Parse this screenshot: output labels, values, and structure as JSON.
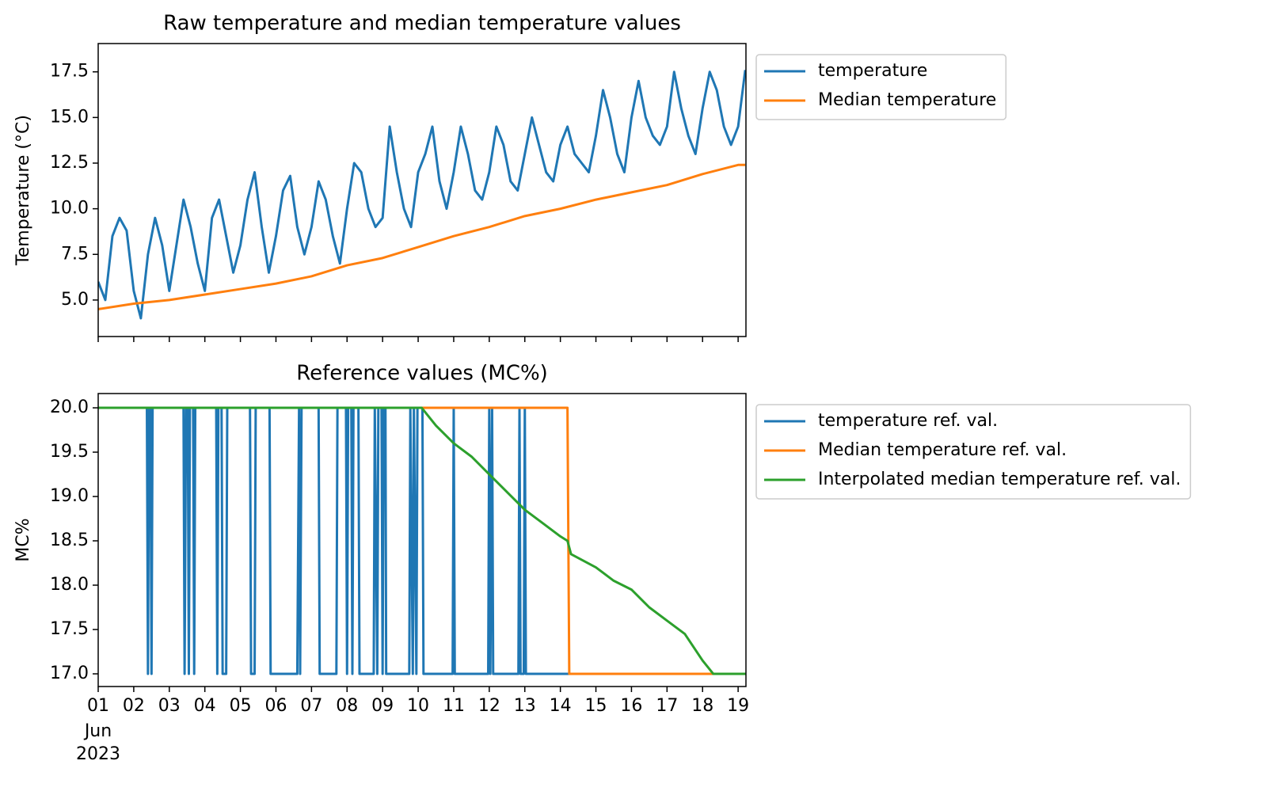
{
  "chart_data": [
    {
      "type": "line",
      "title": "Raw temperature and median temperature values",
      "ylabel": "Temperature (°C)",
      "xlim": [
        1,
        19.22
      ],
      "ylim": [
        3.0,
        19.05
      ],
      "xticks": [
        1,
        2,
        3,
        4,
        5,
        6,
        7,
        8,
        9,
        10,
        11,
        12,
        13,
        14,
        15,
        16,
        17,
        18,
        19
      ],
      "yticks": [
        {
          "value": 5,
          "label": "5.0"
        },
        7.5,
        {
          "value": 10,
          "label": "10.0"
        },
        12.5,
        {
          "value": 15,
          "label": "15.0"
        },
        17.5
      ],
      "grid": false,
      "legend": "outside upper right",
      "series": [
        {
          "name": "temperature",
          "color": "#1f77b4",
          "x": [
            1.0,
            1.2,
            1.4,
            1.6,
            1.8,
            2.0,
            2.2,
            2.4,
            2.6,
            2.8,
            3.0,
            3.2,
            3.4,
            3.6,
            3.8,
            4.0,
            4.2,
            4.4,
            4.6,
            4.8,
            5.0,
            5.2,
            5.4,
            5.6,
            5.8,
            6.0,
            6.2,
            6.4,
            6.6,
            6.8,
            7.0,
            7.2,
            7.4,
            7.6,
            7.8,
            8.0,
            8.2,
            8.4,
            8.6,
            8.8,
            9.0,
            9.2,
            9.4,
            9.6,
            9.8,
            10.0,
            10.2,
            10.4,
            10.6,
            10.8,
            11.0,
            11.2,
            11.4,
            11.6,
            11.8,
            12.0,
            12.2,
            12.4,
            12.6,
            12.8,
            13.0,
            13.2,
            13.4,
            13.6,
            13.8,
            14.0,
            14.2,
            14.4,
            14.6,
            14.8,
            15.0,
            15.2,
            15.4,
            15.6,
            15.8,
            16.0,
            16.2,
            16.4,
            16.6,
            16.8,
            17.0,
            17.2,
            17.4,
            17.6,
            17.8,
            18.0,
            18.2,
            18.4,
            18.6,
            18.8,
            19.0,
            19.2
          ],
          "values": [
            6.0,
            5.0,
            8.5,
            9.5,
            8.8,
            5.5,
            4.0,
            7.5,
            9.5,
            8.0,
            5.5,
            8.0,
            10.5,
            9.0,
            7.0,
            5.5,
            9.5,
            10.5,
            8.5,
            6.5,
            8.0,
            10.5,
            12.0,
            9.0,
            6.5,
            8.5,
            11.0,
            11.8,
            9.0,
            7.5,
            9.0,
            11.5,
            10.5,
            8.5,
            7.0,
            10.0,
            12.5,
            12.0,
            10.0,
            9.0,
            9.5,
            14.5,
            12.0,
            10.0,
            9.0,
            12.0,
            13.0,
            14.5,
            11.5,
            10.0,
            12.0,
            14.5,
            13.0,
            11.0,
            10.5,
            12.0,
            14.5,
            13.5,
            11.5,
            11.0,
            13.0,
            15.0,
            13.5,
            12.0,
            11.5,
            13.5,
            14.5,
            13.0,
            12.5,
            12.0,
            14.0,
            16.5,
            15.0,
            13.0,
            12.0,
            15.0,
            17.0,
            15.0,
            14.0,
            13.5,
            14.5,
            17.5,
            15.5,
            14.0,
            13.0,
            15.5,
            17.5,
            16.5,
            14.5,
            13.5,
            14.5,
            17.6
          ]
        },
        {
          "name": "Median temperature",
          "color": "#ff7f0e",
          "x": [
            1,
            2,
            3,
            4,
            5,
            6,
            7,
            8,
            9,
            10,
            11,
            12,
            13,
            14,
            15,
            16,
            17,
            18,
            19,
            19.2
          ],
          "values": [
            4.5,
            4.8,
            5.0,
            5.3,
            5.6,
            5.9,
            6.3,
            6.9,
            7.3,
            7.9,
            8.5,
            9.0,
            9.6,
            10.0,
            10.5,
            10.9,
            11.3,
            11.9,
            12.4,
            12.4
          ]
        }
      ]
    },
    {
      "type": "line",
      "title": "Reference values (MC%)",
      "ylabel": "MC%",
      "xlim": [
        1,
        19.22
      ],
      "ylim": [
        16.857,
        20.161
      ],
      "xticks": [
        {
          "value": 1,
          "label": "01"
        },
        {
          "value": 2,
          "label": "02"
        },
        {
          "value": 3,
          "label": "03"
        },
        {
          "value": 4,
          "label": "04"
        },
        {
          "value": 5,
          "label": "05"
        },
        {
          "value": 6,
          "label": "06"
        },
        {
          "value": 7,
          "label": "07"
        },
        {
          "value": 8,
          "label": "08"
        },
        {
          "value": 9,
          "label": "09"
        },
        10,
        11,
        12,
        13,
        14,
        15,
        16,
        17,
        18,
        19
      ],
      "x_sublabels": [
        "Jun",
        "2023"
      ],
      "yticks": [
        {
          "value": 17,
          "label": "17.0"
        },
        17.5,
        {
          "value": 18,
          "label": "18.0"
        },
        18.5,
        {
          "value": 19,
          "label": "19.0"
        },
        19.5,
        {
          "value": 20,
          "label": "20.0"
        }
      ],
      "grid": false,
      "legend": "outside upper right",
      "series": [
        {
          "name": "temperature ref. val.",
          "color": "#1f77b4",
          "x": [
            1,
            2.37,
            2.4,
            2.43,
            2.47,
            2.5,
            2.53,
            3.4,
            3.43,
            3.47,
            3.52,
            3.55,
            3.58,
            3.67,
            3.7,
            3.73,
            4.32,
            4.35,
            4.38,
            4.47,
            4.5,
            4.6,
            4.63,
            5.27,
            5.3,
            5.4,
            5.43,
            5.82,
            5.85,
            6.6,
            6.65,
            6.68,
            6.72,
            7.2,
            7.23,
            7.7,
            7.73,
            7.97,
            8.0,
            8.03,
            8.12,
            8.15,
            8.18,
            8.32,
            8.35,
            8.75,
            8.78,
            8.85,
            8.88,
            8.97,
            9.0,
            9.03,
            9.08,
            9.1,
            9.75,
            9.78,
            9.85,
            9.88,
            9.95,
            9.98,
            10.12,
            10.15,
            10.97,
            11.0,
            11.03,
            11.97,
            12.0,
            12.03,
            12.08,
            12.11,
            12.82,
            12.85,
            12.88,
            12.97,
            13.0,
            13.03,
            19.22
          ],
          "values": [
            20,
            20,
            17,
            20,
            20,
            17,
            20,
            20,
            17,
            20,
            20,
            17,
            20,
            20,
            17,
            20,
            20,
            17,
            20,
            20,
            17,
            17,
            20,
            20,
            17,
            17,
            20,
            20,
            17,
            17,
            20,
            17,
            20,
            20,
            17,
            17,
            20,
            20,
            17,
            20,
            20,
            17,
            20,
            20,
            17,
            17,
            20,
            17,
            20,
            20,
            17,
            20,
            20,
            17,
            17,
            20,
            17,
            20,
            17,
            20,
            20,
            17,
            17,
            20,
            17,
            17,
            20,
            17,
            20,
            17,
            17,
            20,
            17,
            17,
            20,
            17,
            17
          ]
        },
        {
          "name": "Median temperature ref. val.",
          "color": "#ff7f0e",
          "x": [
            1,
            14.2,
            14.25,
            19.22
          ],
          "values": [
            20,
            20,
            17,
            17
          ]
        },
        {
          "name": "Interpolated median temperature ref. val.",
          "color": "#2ca02c",
          "x": [
            1,
            10.1,
            10.5,
            11,
            11.5,
            12,
            12.5,
            13,
            13.5,
            14,
            14.2,
            14.3,
            15,
            15.5,
            16,
            16.5,
            17,
            17.5,
            18,
            18.3,
            19.22
          ],
          "values": [
            20,
            20,
            19.8,
            19.6,
            19.45,
            19.25,
            19.05,
            18.85,
            18.7,
            18.55,
            18.5,
            18.35,
            18.2,
            18.05,
            17.95,
            17.75,
            17.6,
            17.45,
            17.15,
            17.0,
            17
          ]
        }
      ]
    }
  ]
}
